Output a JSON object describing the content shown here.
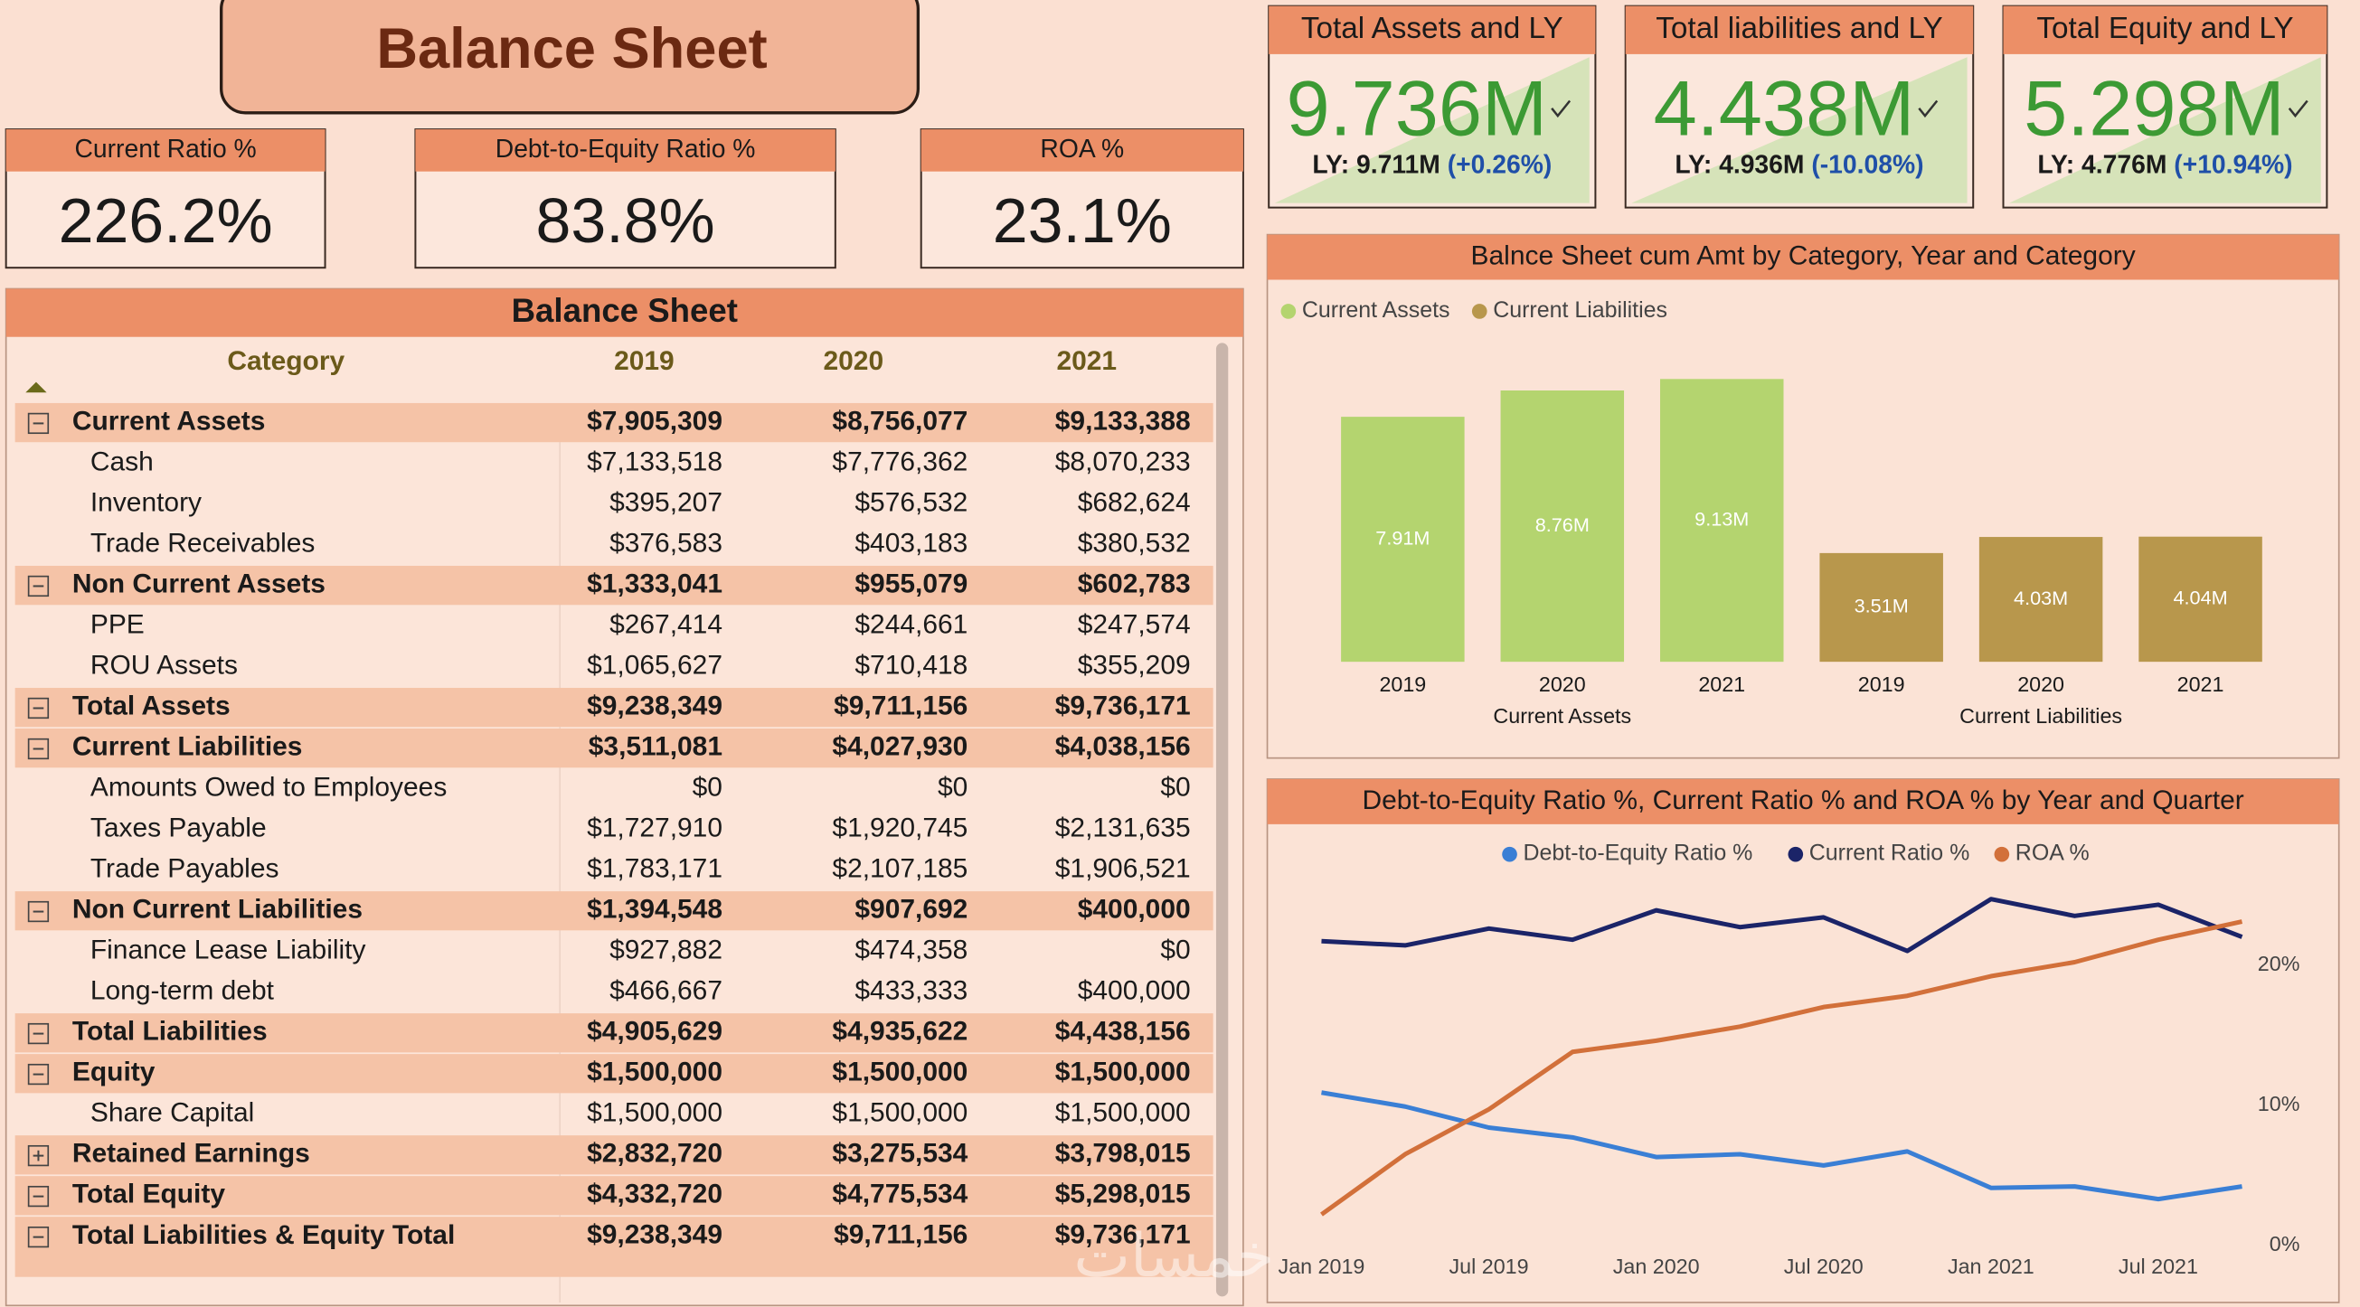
{
  "header": {
    "title": "Balance Sheet"
  },
  "kpis": [
    {
      "label": "Current Ratio %",
      "value": "226.2%"
    },
    {
      "label": "Debt-to-Equity Ratio %",
      "value": "83.8%"
    },
    {
      "label": "ROA %",
      "value": "23.1%"
    }
  ],
  "cards": [
    {
      "title": "Total Assets and LY",
      "value": "9.736M",
      "ly": "LY: 9.711M",
      "change": "(+0.26%)"
    },
    {
      "title": "Total liabilities and LY",
      "value": "4.438M",
      "ly": "LY: 4.936M",
      "change": "(-10.08%)"
    },
    {
      "title": "Total Equity and LY",
      "value": "5.298M",
      "ly": "LY: 4.776M",
      "change": "(+10.94%)"
    }
  ],
  "table": {
    "title": "Balance Sheet",
    "columns": [
      "Category",
      "2019",
      "2020",
      "2021"
    ],
    "rows": [
      {
        "label": "Current Assets",
        "bold": true,
        "toggle": "expanded",
        "cells": [
          "$7,905,309",
          "$8,756,077",
          "$9,133,388"
        ]
      },
      {
        "label": "Cash",
        "cells": [
          "$7,133,518",
          "$7,776,362",
          "$8,070,233"
        ]
      },
      {
        "label": "Inventory",
        "cells": [
          "$395,207",
          "$576,532",
          "$682,624"
        ]
      },
      {
        "label": "Trade Receivables",
        "cells": [
          "$376,583",
          "$403,183",
          "$380,532"
        ]
      },
      {
        "label": "Non Current Assets",
        "bold": true,
        "toggle": "expanded",
        "cells": [
          "$1,333,041",
          "$955,079",
          "$602,783"
        ]
      },
      {
        "label": "PPE",
        "cells": [
          "$267,414",
          "$244,661",
          "$247,574"
        ]
      },
      {
        "label": "ROU Assets",
        "cells": [
          "$1,065,627",
          "$710,418",
          "$355,209"
        ]
      },
      {
        "label": "Total Assets",
        "bold": true,
        "toggle": "expanded",
        "cells": [
          "$9,238,349",
          "$9,711,156",
          "$9,736,171"
        ]
      },
      {
        "label": "Current Liabilities",
        "bold": true,
        "toggle": "expanded",
        "cells": [
          "$3,511,081",
          "$4,027,930",
          "$4,038,156"
        ]
      },
      {
        "label": "Amounts Owed to Employees",
        "cells": [
          "$0",
          "$0",
          "$0"
        ]
      },
      {
        "label": "Taxes Payable",
        "cells": [
          "$1,727,910",
          "$1,920,745",
          "$2,131,635"
        ]
      },
      {
        "label": "Trade Payables",
        "cells": [
          "$1,783,171",
          "$2,107,185",
          "$1,906,521"
        ]
      },
      {
        "label": "Non Current Liabilities",
        "bold": true,
        "toggle": "expanded",
        "cells": [
          "$1,394,548",
          "$907,692",
          "$400,000"
        ]
      },
      {
        "label": "Finance Lease Liability",
        "cells": [
          "$927,882",
          "$474,358",
          "$0"
        ]
      },
      {
        "label": "Long-term debt",
        "cells": [
          "$466,667",
          "$433,333",
          "$400,000"
        ]
      },
      {
        "label": "Total Liabilities",
        "bold": true,
        "toggle": "expanded",
        "cells": [
          "$4,905,629",
          "$4,935,622",
          "$4,438,156"
        ]
      },
      {
        "label": "Equity",
        "bold": true,
        "toggle": "expanded",
        "cells": [
          "$1,500,000",
          "$1,500,000",
          "$1,500,000"
        ]
      },
      {
        "label": "Share Capital",
        "cells": [
          "$1,500,000",
          "$1,500,000",
          "$1,500,000"
        ]
      },
      {
        "label": "Retained Earnings",
        "bold": true,
        "toggle": "collapsed",
        "cells": [
          "$2,832,720",
          "$3,275,534",
          "$3,798,015"
        ]
      },
      {
        "label": "Total Equity",
        "bold": true,
        "toggle": "expanded",
        "cells": [
          "$4,332,720",
          "$4,775,534",
          "$5,298,015"
        ]
      },
      {
        "label": "Total Liabilities & Equity Total",
        "bold": true,
        "toggle": "expanded",
        "wrap": true,
        "cells": [
          "$9,238,349",
          "$9,711,156",
          "$9,736,171"
        ]
      }
    ]
  },
  "chart_data": [
    {
      "type": "bar",
      "title": "Balnce Sheet cum Amt by Category, Year and Category",
      "categories": [
        "2019",
        "2020",
        "2021"
      ],
      "series": [
        {
          "name": "Current Assets",
          "color": "#b4d46f",
          "values": [
            7.91,
            8.76,
            9.13
          ],
          "value_labels": [
            "7.91M",
            "8.76M",
            "9.13M"
          ]
        },
        {
          "name": "Current Liabilities",
          "color": "#b8974c",
          "values": [
            3.51,
            4.03,
            4.04
          ],
          "value_labels": [
            "3.51M",
            "4.03M",
            "4.04M"
          ]
        }
      ],
      "legend": "top-left"
    },
    {
      "type": "line",
      "title": "Debt-to-Equity Ratio %, Current Ratio % and ROA % by Year and Quarter",
      "categories": [
        "Jan 2019",
        null,
        "Jul 2019",
        null,
        "Jan 2020",
        null,
        "Jul 2020",
        null,
        "Jan 2021",
        null,
        "Jul 2021",
        null
      ],
      "series": [
        {
          "name": "Debt-to-Equity Ratio %",
          "color": "#3a7fd5",
          "values": [
            10.9,
            9.9,
            8.4,
            7.7,
            6.3,
            6.5,
            5.7,
            6.7,
            4.1,
            4.2,
            3.3,
            4.2
          ]
        },
        {
          "name": "Current Ratio %",
          "color": "#1b2468",
          "values": [
            21.7,
            21.4,
            22.6,
            21.8,
            23.9,
            22.7,
            23.4,
            21.0,
            24.7,
            23.5,
            24.3,
            22.0
          ]
        },
        {
          "name": "ROA %",
          "color": "#d2703a",
          "values": [
            2.2,
            6.5,
            9.7,
            13.8,
            14.6,
            15.6,
            17.0,
            17.8,
            19.2,
            20.2,
            21.8,
            23.1
          ]
        }
      ],
      "ylim": [
        0,
        25
      ],
      "yticks": [
        {
          "value": 0,
          "label": "0%"
        },
        {
          "value": 10,
          "label": "10%"
        },
        {
          "value": 20,
          "label": "20%"
        }
      ],
      "y_axis_side": "right",
      "grid": false,
      "legend": "top-center"
    }
  ],
  "watermark": "خمسات"
}
